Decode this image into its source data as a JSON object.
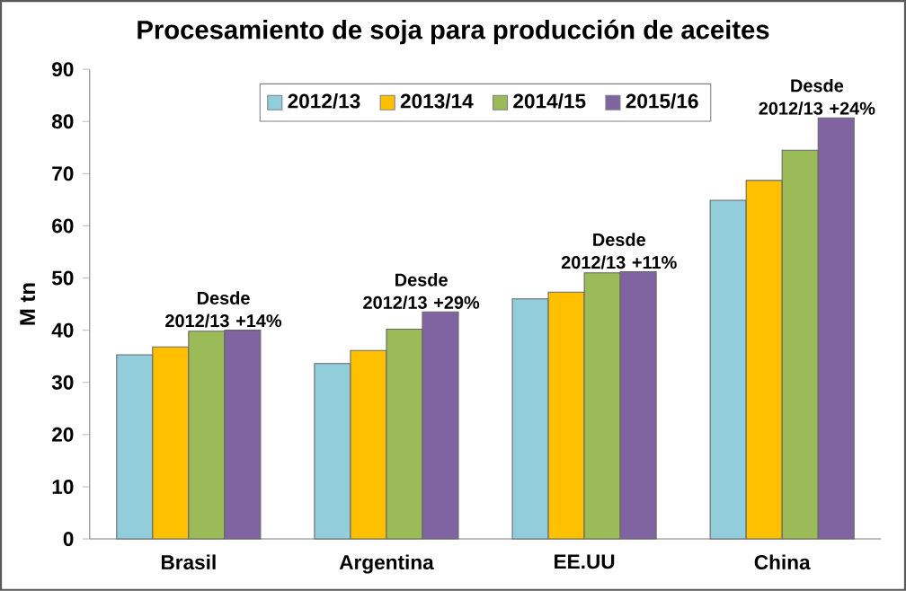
{
  "chart_data": {
    "type": "bar",
    "title": "Procesamiento de soja para producción de aceites",
    "ylabel": "M tn",
    "categories": [
      "Brasil",
      "Argentina",
      "EE.UU",
      "China"
    ],
    "series": [
      {
        "name": "2012/13",
        "color": "#92cddc",
        "values": [
          35.3,
          33.6,
          46.0,
          64.9
        ]
      },
      {
        "name": "2013/14",
        "color": "#ffc000",
        "values": [
          36.8,
          36.1,
          47.3,
          68.7
        ]
      },
      {
        "name": "2014/15",
        "color": "#9bbb59",
        "values": [
          39.8,
          40.2,
          51.0,
          74.5
        ]
      },
      {
        "name": "2015/16",
        "color": "#8064a2",
        "values": [
          40.0,
          43.5,
          51.2,
          80.7
        ]
      }
    ],
    "ylim": [
      0,
      90
    ],
    "yticks": [
      0,
      10,
      20,
      30,
      40,
      50,
      60,
      70,
      80,
      90
    ],
    "grid": false,
    "legend": "top",
    "annotations": [
      "Desde 2012/13 +14%",
      "Desde 2012/13 +29%",
      "Desde 2012/13 +11%",
      "Desde 2012/13 +24%"
    ]
  }
}
